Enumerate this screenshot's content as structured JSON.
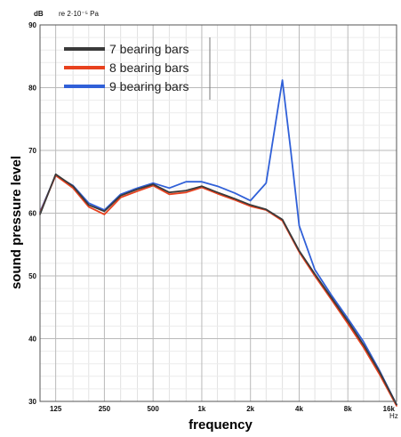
{
  "chart_data": {
    "type": "line",
    "title": "",
    "xlabel": "frequency",
    "ylabel": "sound pressure level",
    "y_unit": "dB",
    "y_reference": "re 2·10⁻⁵ Pa",
    "x_unit": "Hz",
    "x_scale": "log",
    "xlim": [
      100,
      16000
    ],
    "ylim": [
      30,
      90
    ],
    "x_ticks": [
      125,
      250,
      500,
      1000,
      2000,
      4000,
      8000,
      16000
    ],
    "x_tick_labels": [
      "125",
      "250",
      "500",
      "1k",
      "2k",
      "4k",
      "8k",
      "16k"
    ],
    "y_ticks": [
      30,
      40,
      50,
      60,
      70,
      80,
      90
    ],
    "y_tick_labels": [
      "30",
      "40",
      "50",
      "60",
      "70",
      "80",
      "90"
    ],
    "grid": true,
    "legend_position": "top-left",
    "series": [
      {
        "name": "7 bearing bars",
        "color": "#3a3a3a",
        "x": [
          100,
          125,
          160,
          200,
          250,
          315,
          400,
          500,
          630,
          800,
          1000,
          1250,
          1600,
          2000,
          2500,
          3150,
          4000,
          5000,
          6300,
          8000,
          10000,
          12500,
          16000
        ],
        "y": [
          59.8,
          66.2,
          64.3,
          61.3,
          60.3,
          62.8,
          63.8,
          64.6,
          63.3,
          63.6,
          64.3,
          63.3,
          62.3,
          61.3,
          60.6,
          59.0,
          54.0,
          50.3,
          46.6,
          42.8,
          39.0,
          34.8,
          29.5
        ]
      },
      {
        "name": "8 bearing bars",
        "color": "#e8411e",
        "x": [
          100,
          125,
          160,
          200,
          250,
          315,
          400,
          500,
          630,
          800,
          1000,
          1250,
          1600,
          2000,
          2500,
          3150,
          4000,
          5000,
          6300,
          8000,
          10000,
          12500,
          16000
        ],
        "y": [
          60.0,
          66.0,
          64.0,
          61.0,
          59.8,
          62.5,
          63.5,
          64.4,
          63.0,
          63.3,
          64.1,
          63.1,
          62.1,
          61.1,
          60.5,
          58.8,
          53.8,
          50.0,
          46.3,
          42.4,
          38.6,
          34.4,
          29.3
        ]
      },
      {
        "name": "9 bearing bars",
        "color": "#3060d8",
        "x": [
          100,
          125,
          160,
          200,
          250,
          315,
          400,
          500,
          630,
          800,
          1000,
          1250,
          1600,
          2000,
          2500,
          3150,
          3550,
          4000,
          5000,
          6300,
          8000,
          10000,
          12500,
          16000
        ],
        "y": [
          60.2,
          66.0,
          64.4,
          61.6,
          60.5,
          63.0,
          64.0,
          64.8,
          64.0,
          65.0,
          65.0,
          64.3,
          63.2,
          62.0,
          64.8,
          81.2,
          70.0,
          58.0,
          51.0,
          47.0,
          43.2,
          39.5,
          35.0,
          29.5
        ]
      }
    ]
  }
}
